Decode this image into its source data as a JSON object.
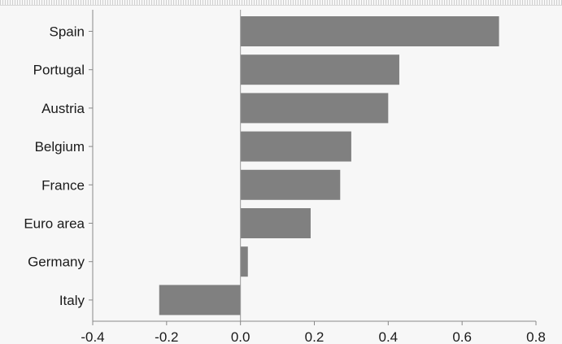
{
  "chart_data": {
    "type": "bar",
    "orientation": "horizontal",
    "categories": [
      "Spain",
      "Portugal",
      "Austria",
      "Belgium",
      "France",
      "Euro area",
      "Germany",
      "Italy"
    ],
    "values": [
      0.7,
      0.43,
      0.4,
      0.3,
      0.27,
      0.19,
      0.02,
      -0.22
    ],
    "xlim": [
      -0.4,
      0.8
    ],
    "xticks": [
      "-0.4",
      "-0.2",
      "0.0",
      "0.2",
      "0.4",
      "0.6",
      "0.8"
    ],
    "title": "",
    "xlabel": "",
    "ylabel": "",
    "grid": false,
    "colors": {
      "bar": "#808080",
      "axis": "#888888",
      "background": "#f7f7f7"
    }
  }
}
